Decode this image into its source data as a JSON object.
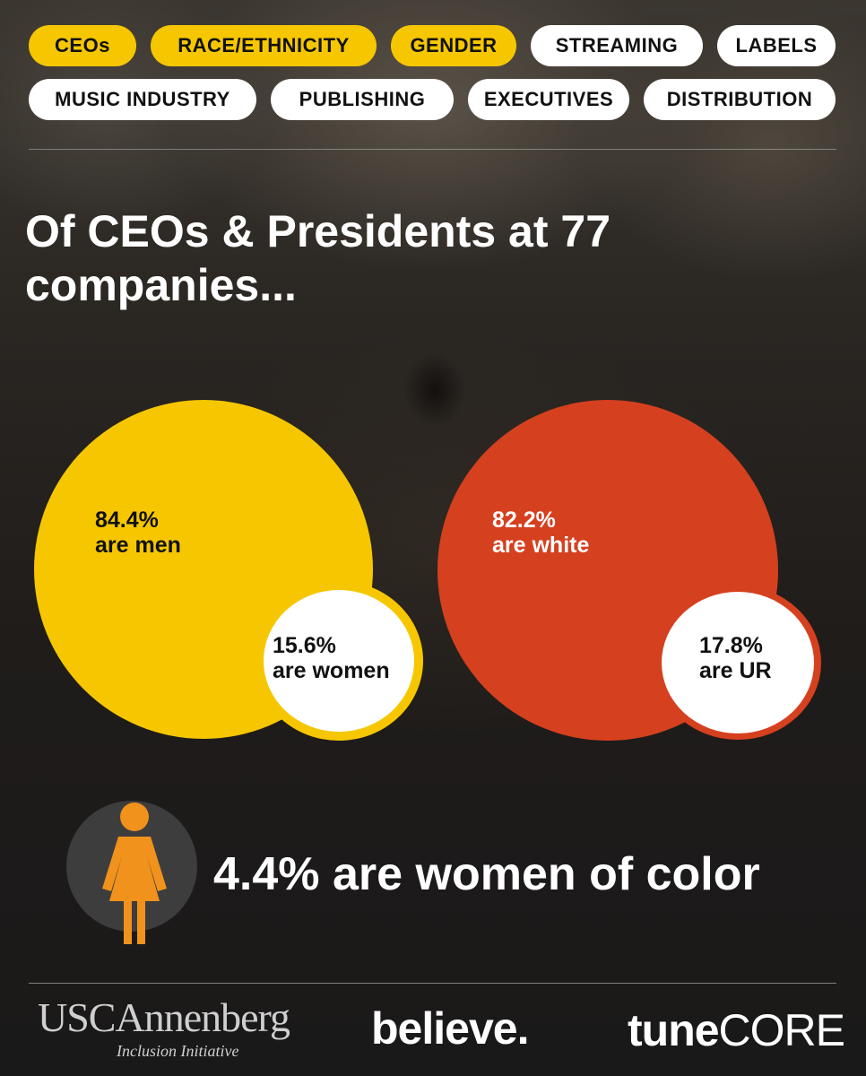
{
  "tags": {
    "row1": [
      {
        "label": "CEOs",
        "active": true
      },
      {
        "label": "RACE/ETHNICITY",
        "active": true
      },
      {
        "label": "GENDER",
        "active": true
      },
      {
        "label": "STREAMING",
        "active": false
      },
      {
        "label": "LABELS",
        "active": false
      }
    ],
    "row2": [
      {
        "label": "MUSIC INDUSTRY",
        "active": false
      },
      {
        "label": "PUBLISHING",
        "active": false
      },
      {
        "label": "EXECUTIVES",
        "active": false
      },
      {
        "label": "DISTRIBUTION",
        "active": false
      }
    ]
  },
  "headline": {
    "line1": "Of CEOs & Presidents at 77",
    "line2": "companies..."
  },
  "gender": {
    "men_value": "84.4%",
    "men_label": "are men",
    "women_value": "15.6%",
    "women_label": "are women"
  },
  "race": {
    "white_value": "82.2%",
    "white_label": "are white",
    "ur_value": "17.8%",
    "ur_label": "are UR"
  },
  "women_of_color": {
    "text": "4.4% are women of color",
    "icon": "woman-icon"
  },
  "logos": {
    "usc_main": "USCAnnenberg",
    "usc_sub": "Inclusion Initiative",
    "believe": "believe",
    "tune_bold": "tune",
    "tune_light": "CORE"
  },
  "colors": {
    "accent_yellow": "#f6c700",
    "accent_red": "#d5401f",
    "person_orange": "#f0921c",
    "icon_disc": "#3d3d3d"
  }
}
